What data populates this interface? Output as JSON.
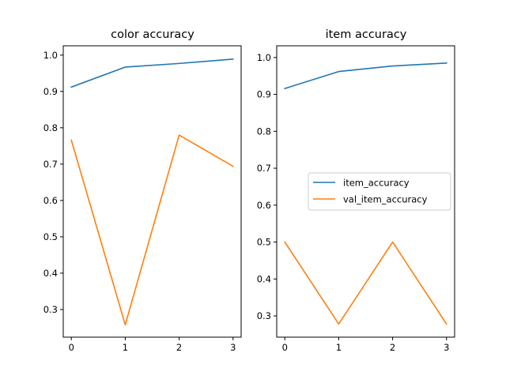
{
  "chart_data": [
    {
      "type": "line",
      "title": "color accuracy",
      "x": [
        0,
        1,
        2,
        3
      ],
      "xlim": [
        -0.15,
        3.15
      ],
      "ylim": [
        0.2239,
        1.0256
      ],
      "xticks": [
        "0",
        "1",
        "2",
        "3"
      ],
      "yticks": [
        "0.3",
        "0.4",
        "0.5",
        "0.6",
        "0.7",
        "0.8",
        "0.9",
        "1.0"
      ],
      "grid": false,
      "series": [
        {
          "values": [
            0.912,
            0.967,
            0.977,
            0.989
          ],
          "color": "#1f77b4"
        },
        {
          "values": [
            0.766,
            0.258,
            0.78,
            0.694
          ],
          "color": "#ff7f0e"
        }
      ]
    },
    {
      "type": "line",
      "title": "item accuracy",
      "x": [
        0,
        1,
        2,
        3
      ],
      "xlim": [
        -0.15,
        3.15
      ],
      "ylim": [
        0.2424,
        1.0317
      ],
      "xticks": [
        "0",
        "1",
        "2",
        "3"
      ],
      "yticks": [
        "0.3",
        "0.4",
        "0.5",
        "0.6",
        "0.7",
        "0.8",
        "0.9",
        "1.0"
      ],
      "grid": false,
      "legend_position": "center-right",
      "series": [
        {
          "name": "item_accuracy",
          "values": [
            0.916,
            0.962,
            0.977,
            0.985
          ],
          "color": "#1f77b4"
        },
        {
          "name": "val_item_accuracy",
          "values": [
            0.5,
            0.278,
            0.5,
            0.278
          ],
          "color": "#ff7f0e"
        }
      ]
    }
  ]
}
